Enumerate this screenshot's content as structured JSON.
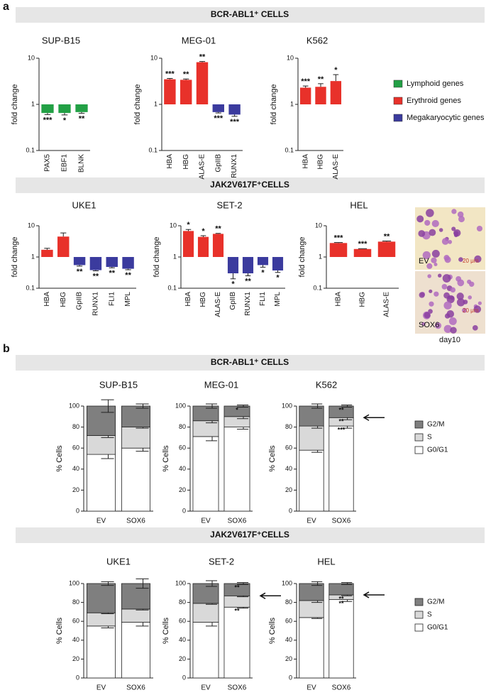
{
  "panels": [
    {
      "letter": "a",
      "banners": [
        "BCR-ABL1⁺ CELLS",
        "JAK2V617F⁺CELLS"
      ]
    },
    {
      "letter": "b",
      "banners": [
        "BCR-ABL1⁺ CELLS",
        "JAK2V617F⁺CELLS"
      ]
    }
  ],
  "legend": [
    {
      "name": "Lymphoid genes",
      "color": "#22a045"
    },
    {
      "name": "Erythroid genes",
      "color": "#e8312a"
    },
    {
      "name": "Megakaryocytic genes",
      "color": "#3b3b9e"
    }
  ],
  "micrographs": {
    "panels": [
      {
        "label": "EV",
        "scale": "20 μm"
      },
      {
        "label": "SOX6",
        "scale": "20 μm"
      }
    ],
    "caption": "day10"
  },
  "chart_data": [
    {
      "type": "bar",
      "title": "SUP-B15",
      "y_label": "fold change",
      "log_scale": true,
      "categories": [
        "PAX5",
        "EBF1",
        "BLNK"
      ],
      "values": [
        0.65,
        0.65,
        0.68
      ],
      "errors": [
        0.05,
        0.06,
        0.04
      ],
      "colors": [
        "#22a045",
        "#22a045",
        "#22a045"
      ],
      "annotations": [
        "***",
        "*",
        "**"
      ],
      "ylim": [
        0.1,
        10
      ],
      "yticks": [
        0.1,
        1,
        10
      ]
    },
    {
      "type": "bar",
      "title": "MEG-01",
      "y_label": "fold change",
      "log_scale": true,
      "categories": [
        "HBA",
        "HBG",
        "ALAS-E",
        "GpIIB",
        "RUNX1"
      ],
      "values": [
        3.5,
        3.4,
        8.2,
        0.68,
        0.6
      ],
      "errors": [
        0.15,
        0.15,
        0.3,
        0.03,
        0.05
      ],
      "colors": [
        "#e8312a",
        "#e8312a",
        "#e8312a",
        "#3b3b9e",
        "#3b3b9e"
      ],
      "annotations": [
        "***",
        "**",
        "**",
        "***",
        "***"
      ],
      "ylim": [
        0.1,
        10
      ],
      "yticks": [
        0.1,
        1,
        10
      ]
    },
    {
      "type": "bar",
      "title": "K562",
      "y_label": "fold change",
      "log_scale": true,
      "categories": [
        "HBA",
        "HBG",
        "ALAS-E"
      ],
      "values": [
        2.3,
        2.4,
        3.2
      ],
      "errors": [
        0.2,
        0.4,
        1.2
      ],
      "colors": [
        "#e8312a",
        "#e8312a",
        "#e8312a"
      ],
      "annotations": [
        "***",
        "**",
        "*"
      ],
      "ylim": [
        0.1,
        10
      ],
      "yticks": [
        0.1,
        1,
        10
      ]
    },
    {
      "type": "bar",
      "title": "UKE1",
      "y_label": "fold change",
      "log_scale": true,
      "categories": [
        "HBA",
        "HBG",
        "GpIIB",
        "RUNX1",
        "FLI1",
        "MPL"
      ],
      "values": [
        1.7,
        4.5,
        0.55,
        0.38,
        0.48,
        0.42
      ],
      "errors": [
        0.2,
        1.4,
        0.04,
        0.02,
        0.03,
        0.03
      ],
      "colors": [
        "#e8312a",
        "#e8312a",
        "#3b3b9e",
        "#3b3b9e",
        "#3b3b9e",
        "#3b3b9e"
      ],
      "annotations": [
        null,
        null,
        "**",
        "**",
        "**",
        "**"
      ],
      "ylim": [
        0.1,
        10
      ],
      "yticks": [
        0.1,
        1,
        10
      ]
    },
    {
      "type": "bar",
      "title": "SET-2",
      "y_label": "fold change",
      "log_scale": true,
      "categories": [
        "HBA",
        "HBG",
        "ALAS-E",
        "GpIIB",
        "RUNX1",
        "FLI1",
        "MPL"
      ],
      "values": [
        6.8,
        4.4,
        5.5,
        0.3,
        0.3,
        0.55,
        0.37
      ],
      "errors": [
        0.8,
        0.4,
        0.2,
        0.1,
        0.05,
        0.08,
        0.05
      ],
      "colors": [
        "#e8312a",
        "#e8312a",
        "#e8312a",
        "#3b3b9e",
        "#3b3b9e",
        "#3b3b9e",
        "#3b3b9e"
      ],
      "annotations": [
        "*",
        "*",
        "**",
        "*",
        "**",
        "*",
        "*"
      ],
      "ylim": [
        0.1,
        10
      ],
      "yticks": [
        0.1,
        1,
        10
      ]
    },
    {
      "type": "bar",
      "title": "HEL",
      "y_label": "fold change",
      "log_scale": true,
      "categories": [
        "HBA",
        "HBG",
        "ALAS-E"
      ],
      "values": [
        2.8,
        1.8,
        3.1
      ],
      "errors": [
        0.1,
        0.05,
        0.15
      ],
      "colors": [
        "#e8312a",
        "#e8312a",
        "#e8312a"
      ],
      "annotations": [
        "***",
        "***",
        "**"
      ],
      "ylim": [
        0.1,
        10
      ],
      "yticks": [
        0.1,
        1,
        10
      ]
    },
    {
      "type": "stacked_bar",
      "title": "SUP-B15",
      "y_label": "% Cells",
      "categories": [
        "EV",
        "SOX6"
      ],
      "series": [
        {
          "name": "G0/G1",
          "color": "#ffffff",
          "values": [
            54,
            60
          ],
          "errors": [
            4,
            3
          ],
          "annotations": [
            null,
            null
          ]
        },
        {
          "name": "S",
          "color": "#d9d9d9",
          "values": [
            18,
            20
          ],
          "errors": [
            2,
            1
          ],
          "annotations": [
            null,
            null
          ]
        },
        {
          "name": "G2/M",
          "color": "#7f7f7f",
          "values": [
            28,
            20
          ],
          "errors": [
            6,
            2
          ],
          "annotations": [
            null,
            null
          ]
        }
      ],
      "ylim": [
        0,
        100
      ],
      "yticks": [
        0,
        20,
        40,
        60,
        80,
        100
      ]
    },
    {
      "type": "stacked_bar",
      "title": "MEG-01",
      "y_label": "% Cells",
      "categories": [
        "EV",
        "SOX6"
      ],
      "series": [
        {
          "name": "G0/G1",
          "color": "#ffffff",
          "values": [
            71,
            80
          ],
          "errors": [
            4,
            2
          ],
          "annotations": [
            null,
            null
          ]
        },
        {
          "name": "S",
          "color": "#d9d9d9",
          "values": [
            15,
            10
          ],
          "errors": [
            2,
            2
          ],
          "annotations": [
            null,
            null
          ]
        },
        {
          "name": "G2/M",
          "color": "#7f7f7f",
          "values": [
            14,
            10
          ],
          "errors": [
            2,
            1
          ],
          "annotations": [
            null,
            "*"
          ]
        }
      ],
      "ylim": [
        0,
        100
      ],
      "yticks": [
        0,
        20,
        40,
        60,
        80,
        100
      ]
    },
    {
      "type": "stacked_bar",
      "title": "K562",
      "y_label": "% Cells",
      "categories": [
        "EV",
        "SOX6"
      ],
      "legend": "right",
      "arrow": true,
      "series": [
        {
          "name": "G0/G1",
          "color": "#ffffff",
          "values": [
            58,
            81
          ],
          "errors": [
            2,
            2
          ],
          "annotations": [
            null,
            "***"
          ]
        },
        {
          "name": "S",
          "color": "#d9d9d9",
          "values": [
            23,
            8
          ],
          "errors": [
            2,
            2
          ],
          "annotations": [
            null,
            "**"
          ]
        },
        {
          "name": "G2/M",
          "color": "#7f7f7f",
          "values": [
            19,
            11
          ],
          "errors": [
            2,
            1
          ],
          "annotations": [
            null,
            "**"
          ]
        }
      ],
      "ylim": [
        0,
        100
      ],
      "yticks": [
        0,
        20,
        40,
        60,
        80,
        100
      ]
    },
    {
      "type": "stacked_bar",
      "title": "UKE1",
      "y_label": "% Cells",
      "categories": [
        "EV",
        "SOX6"
      ],
      "series": [
        {
          "name": "G0/G1",
          "color": "#ffffff",
          "values": [
            55,
            59
          ],
          "errors": [
            2,
            4
          ],
          "annotations": [
            null,
            null
          ]
        },
        {
          "name": "S",
          "color": "#d9d9d9",
          "values": [
            14,
            14
          ],
          "errors": [
            1,
            1
          ],
          "annotations": [
            null,
            null
          ]
        },
        {
          "name": "G2/M",
          "color": "#7f7f7f",
          "values": [
            31,
            27
          ],
          "errors": [
            2,
            5
          ],
          "annotations": [
            null,
            null
          ]
        }
      ],
      "ylim": [
        0,
        100
      ],
      "yticks": [
        0,
        20,
        40,
        60,
        80,
        100
      ]
    },
    {
      "type": "stacked_bar",
      "title": "SET-2",
      "y_label": "% Cells",
      "categories": [
        "EV",
        "SOX6"
      ],
      "arrow": true,
      "series": [
        {
          "name": "G0/G1",
          "color": "#ffffff",
          "values": [
            59,
            75
          ],
          "errors": [
            4,
            1
          ],
          "annotations": [
            null,
            "**"
          ]
        },
        {
          "name": "S",
          "color": "#d9d9d9",
          "values": [
            20,
            12
          ],
          "errors": [
            1,
            1
          ],
          "annotations": [
            null,
            null
          ]
        },
        {
          "name": "G2/M",
          "color": "#7f7f7f",
          "values": [
            21,
            13
          ],
          "errors": [
            3,
            1
          ],
          "annotations": [
            null,
            "**"
          ]
        }
      ],
      "ylim": [
        0,
        100
      ],
      "yticks": [
        0,
        20,
        40,
        60,
        80,
        100
      ]
    },
    {
      "type": "stacked_bar",
      "title": "HEL",
      "y_label": "% Cells",
      "categories": [
        "EV",
        "SOX6"
      ],
      "legend": "right",
      "arrow": true,
      "series": [
        {
          "name": "G0/G1",
          "color": "#ffffff",
          "values": [
            64,
            83
          ],
          "errors": [
            1,
            2
          ],
          "annotations": [
            null,
            "**"
          ]
        },
        {
          "name": "S",
          "color": "#d9d9d9",
          "values": [
            18,
            5
          ],
          "errors": [
            2,
            1
          ],
          "annotations": [
            null,
            "**"
          ]
        },
        {
          "name": "G2/M",
          "color": "#7f7f7f",
          "values": [
            18,
            12
          ],
          "errors": [
            2,
            1
          ],
          "annotations": [
            null,
            null
          ]
        }
      ],
      "ylim": [
        0,
        100
      ],
      "yticks": [
        0,
        20,
        40,
        60,
        80,
        100
      ]
    }
  ]
}
